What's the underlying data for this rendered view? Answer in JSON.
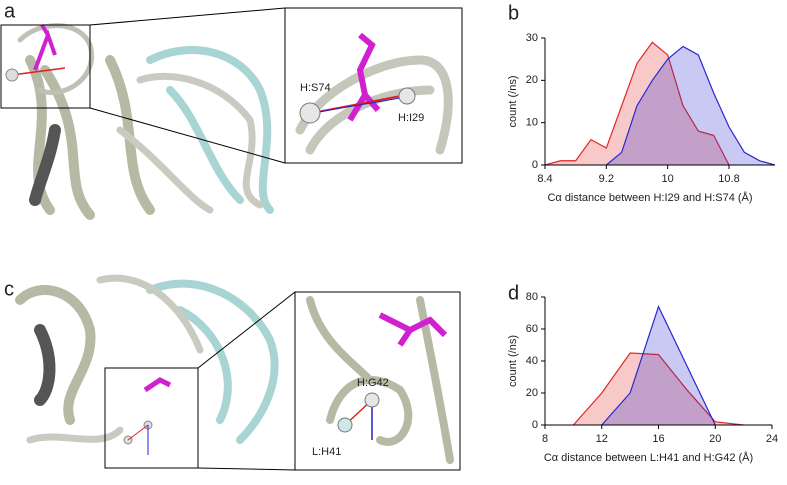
{
  "panels": {
    "a": {
      "letter": "a",
      "labels": [
        "H:S74",
        "H:I29"
      ]
    },
    "c": {
      "letter": "c",
      "labels": [
        "H:G42",
        "L:H41"
      ]
    },
    "b": {
      "letter": "b"
    },
    "d": {
      "letter": "d"
    }
  },
  "chart_data": [
    {
      "type": "area",
      "xlabel": "Cα distance between H:I29 and H:S74 (Å)",
      "ylabel": "count (/ns)",
      "xlim": [
        8.4,
        11.4
      ],
      "xticks": [
        8.4,
        9.2,
        10,
        10.8
      ],
      "ylim": [
        0,
        30
      ],
      "yticks": [
        0,
        10,
        20,
        30
      ],
      "series": [
        {
          "color": "#e02828",
          "x": [
            8.4,
            8.6,
            8.8,
            9.0,
            9.2,
            9.4,
            9.6,
            9.8,
            10.0,
            10.2,
            10.4,
            10.6,
            10.8
          ],
          "values": [
            0,
            1,
            1,
            6,
            4,
            14,
            24,
            29,
            26,
            14,
            8,
            7,
            0
          ]
        },
        {
          "color": "#2828d0",
          "x": [
            9.2,
            9.4,
            9.6,
            9.8,
            10.0,
            10.2,
            10.4,
            10.6,
            10.8,
            11.0,
            11.2,
            11.4
          ],
          "values": [
            0,
            3,
            14,
            20,
            25,
            28,
            26,
            17,
            9,
            3,
            1,
            0
          ]
        }
      ]
    },
    {
      "type": "area",
      "xlabel": "Cα distance between L:H41 and H:G42 (Å)",
      "ylabel": "count (/ns)",
      "xlim": [
        8,
        24
      ],
      "xticks": [
        8,
        12,
        16,
        20,
        24
      ],
      "ylim": [
        0,
        80
      ],
      "yticks": [
        0,
        20,
        40,
        60,
        80
      ],
      "series": [
        {
          "color": "#e02828",
          "x": [
            10,
            12,
            14,
            16,
            18,
            20,
            22
          ],
          "values": [
            0,
            20,
            45,
            44,
            22,
            2,
            0
          ]
        },
        {
          "color": "#2828d0",
          "x": [
            12,
            14,
            16,
            18,
            20
          ],
          "values": [
            0,
            20,
            74,
            37,
            0
          ]
        }
      ]
    }
  ]
}
